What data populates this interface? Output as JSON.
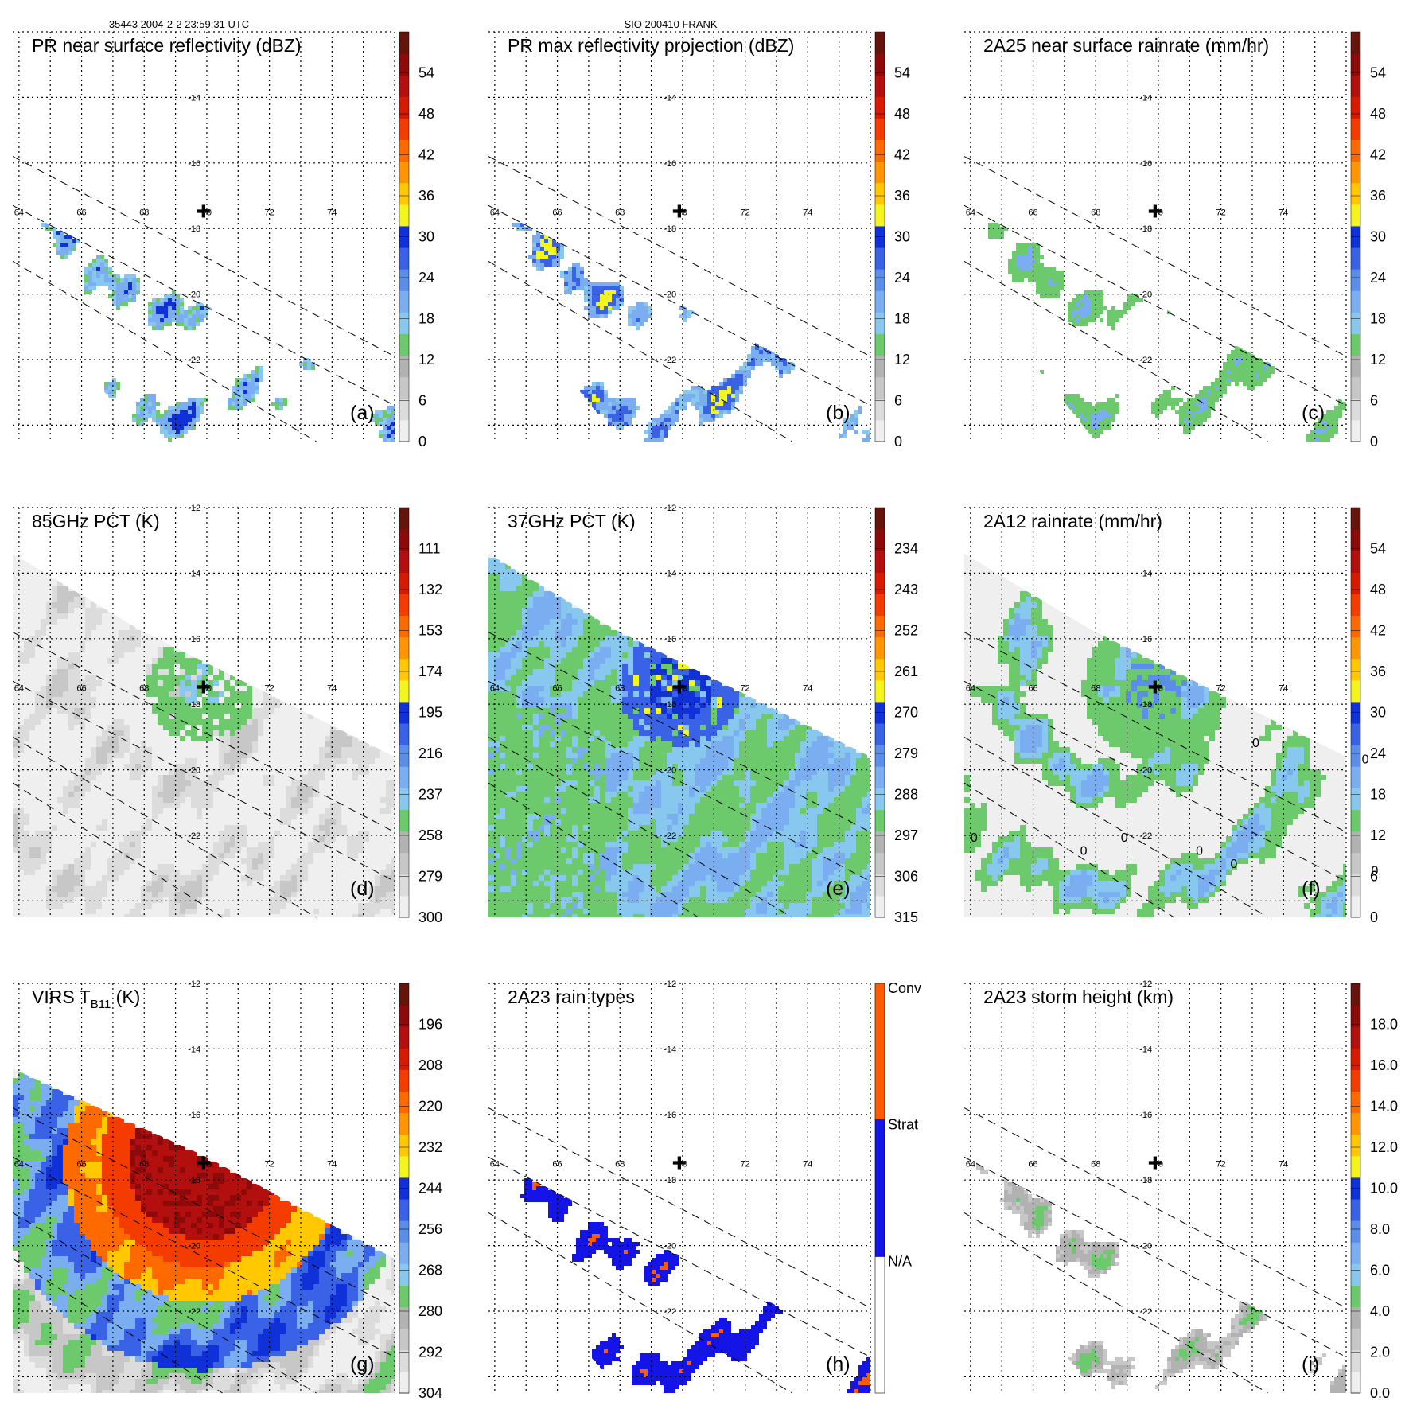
{
  "header": {
    "left": "35443 2004-2-2 23:59:31 UTC",
    "center": "SIO 200410 FRANK"
  },
  "colors": {
    "colorbar": [
      "#efefef",
      "#dcdcdc",
      "#c7c7c7",
      "#b2b2b2",
      "#6cc96c",
      "#88c8ee",
      "#7aaef0",
      "#5a8ee8",
      "#3a62e6",
      "#1030d8",
      "#f5f51e",
      "#ffc800",
      "#ff9600",
      "#ff6a00",
      "#f53c00",
      "#d81a00",
      "#b40f0f",
      "#8c0a0a",
      "#64140a"
    ],
    "three_class": [
      "#ffffff",
      "#1414e6",
      "#ff5a00"
    ],
    "swath_gray": "#ececec",
    "cloud_dark": "#8a8a8a",
    "green": "#6cc96c",
    "blue": "#3a62e6",
    "red": "#d81a00",
    "orange": "#ff9600"
  },
  "map": {
    "lon_ticks": [
      "64",
      "66",
      "68",
      "70",
      "72",
      "74"
    ],
    "lat_ticks": [
      "-12",
      "-14",
      "-16",
      "-18",
      "-20",
      "-22"
    ],
    "storm_center": {
      "lon": 69.9,
      "lat": -17.5
    }
  },
  "chart_data": [
    {
      "type": "heatmap",
      "id": "a",
      "title": "PR near surface reflectivity (dBZ)",
      "panel_label": "(a)",
      "colorbar": {
        "min": 0,
        "max": 60,
        "ticks": [
          "0",
          "6",
          "12",
          "18",
          "24",
          "30",
          "36",
          "42",
          "48",
          "54"
        ]
      },
      "lon_range": [
        63.8,
        76
      ],
      "lat_range": [
        -24.5,
        -12
      ],
      "visible_lat_labels": [
        "-14",
        "-16",
        "-18",
        "-20",
        "-22"
      ],
      "coverage": "pr",
      "field": "pr_sparse",
      "contour": false
    },
    {
      "type": "heatmap",
      "id": "b",
      "title": "PR max reflectivity projection (dBZ)",
      "panel_label": "(b)",
      "colorbar": {
        "min": 0,
        "max": 60,
        "ticks": [
          "0",
          "6",
          "12",
          "18",
          "24",
          "30",
          "36",
          "42",
          "48",
          "54"
        ]
      },
      "lon_range": [
        63.8,
        76
      ],
      "lat_range": [
        -24.5,
        -12
      ],
      "visible_lat_labels": [
        "-14",
        "-16",
        "-18",
        "-20",
        "-22"
      ],
      "coverage": "pr",
      "field": "pr_max",
      "contour": true
    },
    {
      "type": "heatmap",
      "id": "c",
      "title": "2A25 near surface rainrate (mm/hr)",
      "panel_label": "(c)",
      "colorbar": {
        "min": 0,
        "max": 60,
        "ticks": [
          "0",
          "6",
          "12",
          "18",
          "24",
          "30",
          "36",
          "42",
          "48",
          "54"
        ]
      },
      "lon_range": [
        63.8,
        76
      ],
      "lat_range": [
        -24.5,
        -12
      ],
      "visible_lat_labels": [
        "-14",
        "-16",
        "-18",
        "-20",
        "-22"
      ],
      "coverage": "pr",
      "field": "pr_rain",
      "contour": true
    },
    {
      "type": "heatmap",
      "id": "d",
      "title": "85GHz PCT (K)",
      "panel_label": "(d)",
      "colorbar": {
        "min": 300,
        "max": 90,
        "ticks": [
          "300",
          "279",
          "258",
          "237",
          "216",
          "195",
          "174",
          "153",
          "132",
          "111"
        ]
      },
      "lon_range": [
        63.8,
        76
      ],
      "lat_range": [
        -24.5,
        -12
      ],
      "visible_lat_labels": [
        "-12",
        "-14",
        "-16",
        "-18",
        "-20",
        "-22"
      ],
      "coverage": "tmi",
      "field": "pct85",
      "contour": true
    },
    {
      "type": "heatmap",
      "id": "e",
      "title": "37GHz PCT (K)",
      "panel_label": "(e)",
      "colorbar": {
        "min": 315,
        "max": 225,
        "ticks": [
          "315",
          "306",
          "297",
          "288",
          "279",
          "270",
          "261",
          "252",
          "243",
          "234"
        ]
      },
      "lon_range": [
        63.8,
        76
      ],
      "lat_range": [
        -24.5,
        -12
      ],
      "visible_lat_labels": [
        "-12",
        "-14",
        "-16",
        "-18",
        "-20",
        "-22"
      ],
      "coverage": "tmi",
      "field": "pct37",
      "contour": false
    },
    {
      "type": "heatmap",
      "id": "f",
      "title": "2A12 rainrate (mm/hr)",
      "panel_label": "(f)",
      "colorbar": {
        "min": 0,
        "max": 60,
        "ticks": [
          "0",
          "6",
          "12",
          "18",
          "24",
          "30",
          "36",
          "42",
          "48",
          "54"
        ]
      },
      "lon_range": [
        63.8,
        76
      ],
      "lat_range": [
        -24.5,
        -12
      ],
      "visible_lat_labels": [
        "-14",
        "-16",
        "-18",
        "-20",
        "-22"
      ],
      "coverage": "tmi",
      "field": "rain2a12",
      "contour": true,
      "contour_labels": [
        "0",
        "0",
        "0",
        "0",
        "0",
        "0",
        "0",
        "0"
      ]
    },
    {
      "type": "heatmap",
      "id": "g",
      "title_main": "VIRS T",
      "title_sub": "B11",
      "title_unit": " (K)",
      "panel_label": "(g)",
      "colorbar": {
        "min": 304,
        "max": 184,
        "ticks": [
          "304",
          "292",
          "280",
          "268",
          "256",
          "244",
          "232",
          "220",
          "208",
          "196"
        ]
      },
      "lon_range": [
        63.8,
        76
      ],
      "lat_range": [
        -24.5,
        -12
      ],
      "visible_lat_labels": [
        "-12",
        "-14",
        "-16",
        "-18",
        "-20",
        "-22"
      ],
      "coverage": "virs",
      "field": "virs",
      "contour": true
    },
    {
      "type": "heatmap",
      "id": "h",
      "title": "2A23 rain types",
      "panel_label": "(h)",
      "colorbar": {
        "classes": [
          "N/A",
          "Strat",
          "Conv"
        ]
      },
      "lon_range": [
        63.8,
        76
      ],
      "lat_range": [
        -24.5,
        -12
      ],
      "visible_lat_labels": [
        "-12",
        "-14",
        "-16",
        "-18",
        "-20",
        "-22"
      ],
      "coverage": "pr",
      "field": "raintype",
      "contour": false
    },
    {
      "type": "heatmap",
      "id": "i",
      "title": "2A23 storm height (km)",
      "panel_label": "(i)",
      "colorbar": {
        "min": 0,
        "max": 20,
        "ticks": [
          "0.0",
          "2.0",
          "4.0",
          "6.0",
          "8.0",
          "10.0",
          "12.0",
          "14.0",
          "16.0",
          "18.0"
        ]
      },
      "lon_range": [
        63.8,
        76
      ],
      "lat_range": [
        -24.5,
        -12
      ],
      "visible_lat_labels": [
        "-12",
        "-14",
        "-16",
        "-18",
        "-20",
        "-22"
      ],
      "coverage": "pr",
      "field": "height",
      "contour": false
    }
  ]
}
